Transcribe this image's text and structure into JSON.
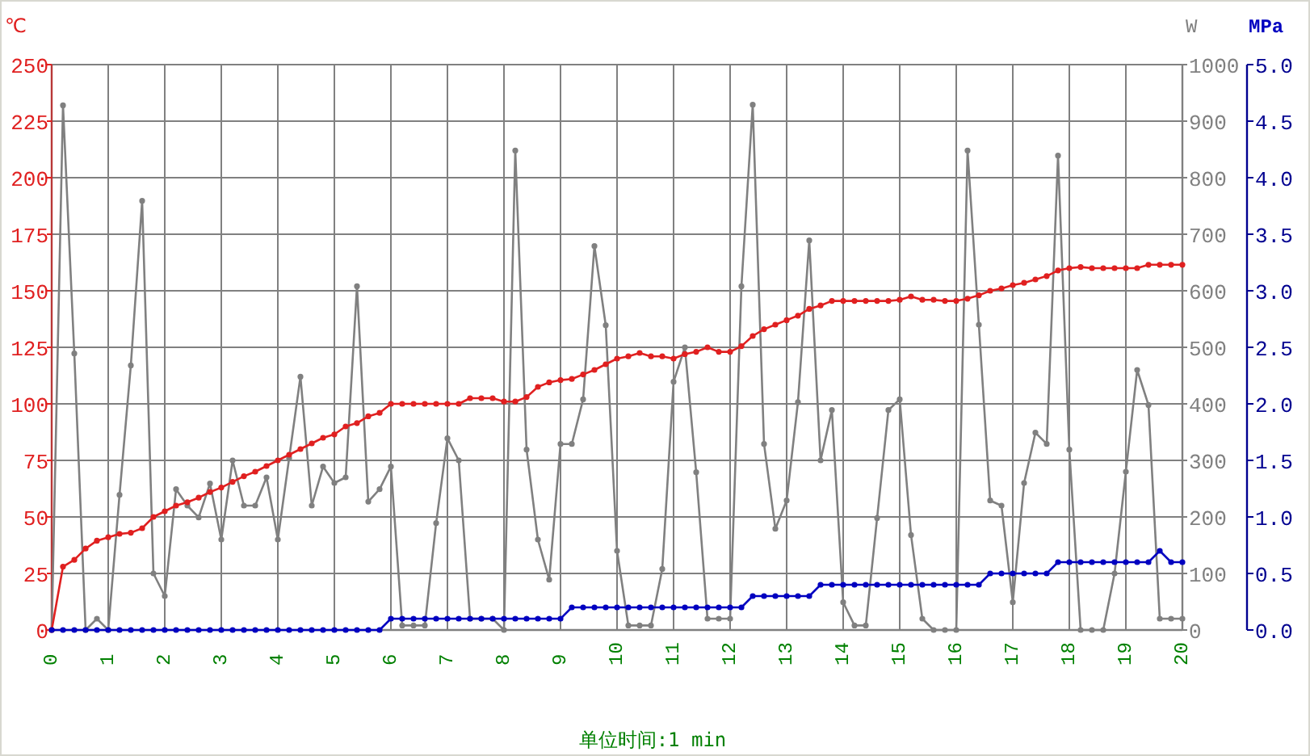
{
  "chart_data": {
    "type": "line",
    "xlabel": "单位时间:1 min",
    "ylabel": "℃",
    "y2label": "W",
    "y3label": "MPa",
    "x": [
      0,
      0.2,
      0.4,
      0.6,
      0.8,
      1,
      1.2,
      1.4,
      1.6,
      1.8,
      2,
      2.2,
      2.4,
      2.6,
      2.8,
      3,
      3.2,
      3.4,
      3.6,
      3.8,
      4,
      4.2,
      4.4,
      4.6,
      4.8,
      5,
      5.2,
      5.4,
      5.6,
      5.8,
      6,
      6.2,
      6.4,
      6.6,
      6.8,
      7,
      7.2,
      7.4,
      7.6,
      7.8,
      8,
      8.2,
      8.4,
      8.6,
      8.8,
      9,
      9.2,
      9.4,
      9.6,
      9.8,
      10,
      10.2,
      10.4,
      10.6,
      10.8,
      11,
      11.2,
      11.4,
      11.6,
      11.8,
      12,
      12.2,
      12.4,
      12.6,
      12.8,
      13,
      13.2,
      13.4,
      13.6,
      13.8,
      14,
      14.2,
      14.4,
      14.6,
      14.8,
      15,
      15.2,
      15.4,
      15.6,
      15.8,
      16,
      16.2,
      16.4,
      16.6,
      16.8,
      17,
      17.2,
      17.4,
      17.6,
      17.8,
      18,
      18.2,
      18.4,
      18.6,
      18.8,
      19,
      19.2,
      19.4,
      19.6,
      19.8,
      20
    ],
    "series": [
      {
        "color": "#808080",
        "axis": "y2",
        "values": [
          0,
          928,
          489,
          0,
          20,
          0,
          239,
          468,
          759,
          100,
          60,
          249,
          220,
          199,
          259,
          160,
          300,
          220,
          220,
          270,
          160,
          304,
          448,
          220,
          289,
          260,
          270,
          608,
          227,
          249,
          289,
          8,
          8,
          8,
          189,
          339,
          300,
          20,
          20,
          20,
          0,
          848,
          319,
          160,
          89,
          329,
          329,
          408,
          679,
          539,
          140,
          8,
          8,
          8,
          108,
          439,
          500,
          279,
          20,
          20,
          20,
          608,
          929,
          329,
          179,
          229,
          403,
          689,
          300,
          389,
          49,
          8,
          8,
          198,
          389,
          408,
          168,
          20,
          0,
          0,
          0,
          848,
          540,
          229,
          220,
          49,
          260,
          349,
          329,
          839,
          319,
          0,
          0,
          0,
          100,
          280,
          460,
          398,
          20,
          20,
          20
        ]
      },
      {
        "color": "#e02020",
        "values": [
          0,
          28,
          31,
          36,
          39.5,
          41,
          42.5,
          43,
          45,
          50,
          52.5,
          55,
          56.5,
          58.5,
          61,
          63,
          65.5,
          68,
          70,
          72.5,
          75,
          77.5,
          80,
          82.5,
          85,
          86.5,
          90,
          91.5,
          94.5,
          96,
          100,
          100,
          100,
          100,
          100,
          100,
          100,
          102.5,
          102.5,
          102.5,
          101,
          101,
          103,
          107.5,
          109.5,
          110.5,
          111,
          113,
          115,
          117.5,
          120,
          121,
          122.5,
          121,
          121,
          120,
          122,
          123,
          125,
          123,
          123,
          125.5,
          130,
          133,
          135,
          137,
          139,
          142,
          143.5,
          145.5,
          145.5,
          145.5,
          145.5,
          145.5,
          145.5,
          146,
          147.5,
          146,
          146,
          145.5,
          145.5,
          146.5,
          148,
          150,
          151,
          152.5,
          153.5,
          155,
          156.5,
          159,
          160,
          160.5,
          160,
          160,
          160,
          160,
          160,
          161.5,
          161.5,
          161.5,
          161.5
        ]
      },
      {
        "color": "#0000c0",
        "axis": "y3",
        "values": [
          0,
          0,
          0,
          0,
          0,
          0,
          0,
          0,
          0,
          0,
          0,
          0,
          0,
          0,
          0,
          0,
          0,
          0,
          0,
          0,
          0,
          0,
          0,
          0,
          0,
          0,
          0,
          0,
          0,
          0,
          0.1,
          0.1,
          0.1,
          0.1,
          0.1,
          0.1,
          0.1,
          0.1,
          0.1,
          0.1,
          0.1,
          0.1,
          0.1,
          0.1,
          0.1,
          0.1,
          0.2,
          0.2,
          0.2,
          0.2,
          0.2,
          0.2,
          0.2,
          0.2,
          0.2,
          0.2,
          0.2,
          0.2,
          0.2,
          0.2,
          0.2,
          0.2,
          0.3,
          0.3,
          0.3,
          0.3,
          0.3,
          0.3,
          0.4,
          0.4,
          0.4,
          0.4,
          0.4,
          0.4,
          0.4,
          0.4,
          0.4,
          0.4,
          0.4,
          0.4,
          0.4,
          0.4,
          0.4,
          0.5,
          0.5,
          0.5,
          0.5,
          0.5,
          0.5,
          0.6,
          0.6,
          0.6,
          0.6,
          0.6,
          0.6,
          0.6,
          0.6,
          0.6,
          0.7,
          0.6,
          0.6
        ]
      }
    ],
    "xlim": [
      0,
      20
    ],
    "xticks": [
      0,
      1,
      2,
      3,
      4,
      5,
      6,
      7,
      8,
      9,
      10,
      11,
      12,
      13,
      14,
      15,
      16,
      17,
      18,
      19,
      20
    ],
    "ylim": [
      0,
      250
    ],
    "yticks": [
      0,
      25,
      50,
      75,
      100,
      125,
      150,
      175,
      200,
      225,
      250
    ],
    "y2lim": [
      0,
      1000
    ],
    "y2ticks": [
      0,
      100,
      200,
      300,
      400,
      500,
      600,
      700,
      800,
      900,
      1000
    ],
    "y3lim": [
      0,
      5
    ],
    "y3ticks": [
      {
        "value": 0,
        "label": "0.0"
      },
      {
        "value": 0.5,
        "label": "0.5"
      },
      {
        "value": 1,
        "label": "1.0"
      },
      {
        "value": 1.5,
        "label": "1.5"
      },
      {
        "value": 2,
        "label": "2.0"
      },
      {
        "value": 2.5,
        "label": "2.5"
      },
      {
        "value": 3,
        "label": "3.0"
      },
      {
        "value": 3.5,
        "label": "3.5"
      },
      {
        "value": 4,
        "label": "4.0"
      },
      {
        "value": 4.5,
        "label": "4.5"
      },
      {
        "value": 5,
        "label": "5.0"
      }
    ],
    "grid": true,
    "marker": "circle",
    "line_style": "solid"
  }
}
